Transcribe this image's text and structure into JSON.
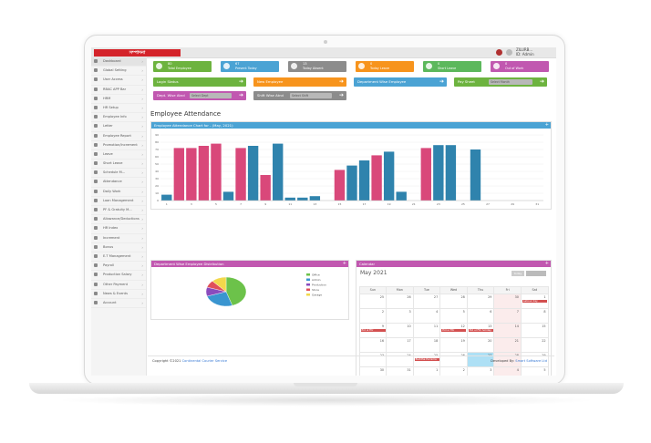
{
  "app": {
    "logo_text": "সম্পাদনা",
    "user": {
      "name_line1": "ZILURB...",
      "name_line2": "ID: Admin"
    }
  },
  "sidebar": {
    "items": [
      {
        "label": "Dashboard"
      },
      {
        "label": "Global Setting"
      },
      {
        "label": "User Access"
      },
      {
        "label": "RBAC APP Bar"
      },
      {
        "label": "HRM"
      },
      {
        "label": "HR Setup"
      },
      {
        "label": "Employee Info"
      },
      {
        "label": "Letter"
      },
      {
        "label": "Employee Report"
      },
      {
        "label": "Promotion/Increment"
      },
      {
        "label": "Leave"
      },
      {
        "label": "Short Leave"
      },
      {
        "label": "Schedule M..."
      },
      {
        "label": "Attendance"
      },
      {
        "label": "Daily Work"
      },
      {
        "label": "Loan Management"
      },
      {
        "label": "PF & Gratuity M..."
      },
      {
        "label": "Allowance/Deductions"
      },
      {
        "label": "HR Index"
      },
      {
        "label": "Increment"
      },
      {
        "label": "Bonus"
      },
      {
        "label": "E.T Management"
      },
      {
        "label": "Payroll"
      },
      {
        "label": "Production Salary"
      },
      {
        "label": "Other Payment"
      },
      {
        "label": "News & Events"
      },
      {
        "label": "Account"
      }
    ]
  },
  "tiles": [
    {
      "value": "80",
      "label": "Total Employee",
      "color": "#6db33f"
    },
    {
      "value": "67",
      "label": "Present Today",
      "color": "#4ba3d4"
    },
    {
      "value": "13",
      "label": "Today Absent",
      "color": "#8c8c8c"
    },
    {
      "value": "0",
      "label": "Today Leave",
      "color": "#f7941d"
    },
    {
      "value": "0",
      "label": "Short Leave",
      "color": "#5cb85c"
    },
    {
      "value": "0",
      "label": "Out of Work",
      "color": "#c158b0"
    }
  ],
  "quick_row1": [
    {
      "label": "Login Status",
      "color": "#6db33f"
    },
    {
      "label": "New Employee",
      "color": "#f7941d"
    },
    {
      "label": "Department Wise Employee",
      "color": "#4ba3d4"
    },
    {
      "label": "Pay Sheet",
      "select": "Select Month",
      "color": "#6db33f"
    }
  ],
  "quick_row2": [
    {
      "label": "Dept. Wise Atnd",
      "select": "Select Dept",
      "color": "#c158b0"
    },
    {
      "label": "Shift Wise Atnd",
      "select": "Select Shift",
      "color": "#8c8c8c"
    }
  ],
  "section_title": "Employee Attendance",
  "attendance_panel": {
    "title": "Employee Attendance Chart for - (May, 2021)",
    "color": "#4ba3d4"
  },
  "chart_data": {
    "type": "bar",
    "title": "Employee Attendance Chart for - (May, 2021)",
    "x": [
      1,
      2,
      3,
      4,
      5,
      6,
      7,
      8,
      9,
      10,
      11,
      12,
      13,
      14,
      15,
      16,
      17,
      18,
      19,
      20,
      21,
      22,
      23,
      24,
      25,
      26,
      27,
      28,
      29,
      30,
      31
    ],
    "series": [
      {
        "name": "Present",
        "color": "#d9487a",
        "values": [
          0,
          72,
          72,
          75,
          78,
          0,
          72,
          0,
          35,
          0,
          0,
          0,
          0,
          0,
          42,
          0,
          0,
          62,
          0,
          0,
          0,
          72,
          0,
          0,
          0,
          0,
          0,
          0,
          0,
          0,
          0
        ]
      },
      {
        "name": "Absent",
        "color": "#2f83ad",
        "values": [
          8,
          0,
          0,
          0,
          0,
          12,
          0,
          75,
          0,
          78,
          4,
          4,
          6,
          0,
          0,
          48,
          55,
          0,
          67,
          12,
          0,
          0,
          76,
          76,
          0,
          70,
          0,
          0,
          0,
          0,
          0
        ]
      }
    ],
    "ylim": [
      0,
      90
    ],
    "yticks": [
      0,
      10,
      20,
      30,
      40,
      50,
      60,
      70,
      80,
      90
    ],
    "xticks": [
      1,
      3,
      5,
      7,
      9,
      11,
      13,
      15,
      17,
      19,
      21,
      23,
      25,
      27,
      29,
      31
    ],
    "ytick_labels": [
      "0",
      "10",
      "20",
      "30",
      "40",
      "50",
      "60",
      "70",
      "80",
      "90"
    ],
    "grid": true
  },
  "pie_panel": {
    "title": "Department Wise Employee Distribution",
    "color": "#c158b0"
  },
  "pie_data": {
    "type": "pie",
    "slices": [
      {
        "name": "Office",
        "value": 45,
        "color": "#6cc24a"
      },
      {
        "name": "Admin",
        "value": 25,
        "color": "#3a95d0"
      },
      {
        "name": "Production",
        "value": 10,
        "color": "#8a4bbd"
      },
      {
        "name": "Store",
        "value": 8,
        "color": "#e0505a"
      },
      {
        "name": "Garage",
        "value": 12,
        "color": "#f2d84b"
      }
    ]
  },
  "calendar_panel": {
    "title": "Calendar",
    "color": "#c158b0"
  },
  "calendar": {
    "month": "May 2021",
    "today_btn": "today",
    "days": [
      "Sun",
      "Mon",
      "Tue",
      "Wed",
      "Thu",
      "Fri",
      "Sat"
    ],
    "weeks": [
      [
        "25",
        "26",
        "27",
        "28",
        "29",
        "30",
        "1"
      ],
      [
        "2",
        "3",
        "4",
        "5",
        "6",
        "7",
        "8"
      ],
      [
        "9",
        "10",
        "11",
        "12",
        "13",
        "14",
        "15"
      ],
      [
        "16",
        "17",
        "18",
        "19",
        "20",
        "21",
        "22"
      ],
      [
        "23",
        "24",
        "25",
        "26",
        "27",
        "28",
        "29"
      ],
      [
        "30",
        "31",
        "1",
        "2",
        "3",
        "4",
        "5"
      ]
    ],
    "events": [
      {
        "label": "Labour day",
        "week": 0,
        "col": 6
      },
      {
        "label": "Eid ul Fitr",
        "week": 2,
        "col": 0
      },
      {
        "label": "Eid ul Fitr",
        "week": 2,
        "col": 3
      },
      {
        "label": "Eid ul Fitr holiday",
        "week": 2,
        "col": 4
      },
      {
        "label": "Buddha Purnima",
        "week": 4,
        "col": 2
      }
    ]
  },
  "footer": {
    "copyright": "Copyright ©2021",
    "company": "Continental Courier Service",
    "developed_by": "Developed By:",
    "developer": "Smart Software Ltd"
  }
}
